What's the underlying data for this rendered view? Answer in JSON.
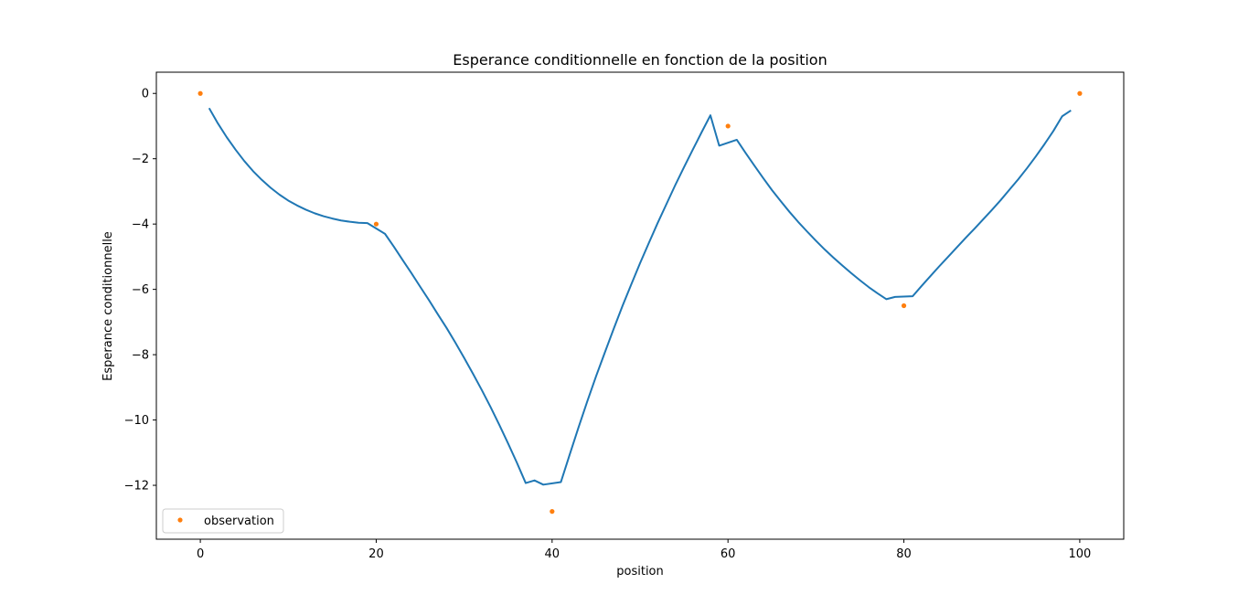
{
  "chart_data": {
    "type": "line",
    "title": "Esperance conditionnelle en fonction de la position",
    "xlabel": "position",
    "ylabel": "Esperance conditionnelle",
    "xlim": [
      -5,
      105
    ],
    "ylim": [
      -13.65,
      0.65
    ],
    "xticks": [
      0,
      20,
      40,
      60,
      80,
      100
    ],
    "yticks": [
      0,
      -2,
      -4,
      -6,
      -8,
      -10,
      -12
    ],
    "xtick_labels": [
      "0",
      "20",
      "40",
      "60",
      "80",
      "100"
    ],
    "ytick_labels": [
      "0",
      "−2",
      "−4",
      "−6",
      "−8",
      "−10",
      "−12"
    ],
    "grid": false,
    "legend": {
      "placement": "lower-left",
      "entries": [
        "observation"
      ]
    },
    "series": [
      {
        "kind": "line",
        "color": "#1f77b4",
        "x": [
          1,
          2,
          3,
          4,
          5,
          6,
          7,
          8,
          9,
          10,
          11,
          12,
          13,
          14,
          15,
          16,
          17,
          18,
          19,
          21,
          22,
          23,
          24,
          25,
          26,
          27,
          28,
          29,
          30,
          31,
          32,
          33,
          34,
          35,
          36,
          37,
          38,
          39,
          41,
          42,
          43,
          44,
          45,
          46,
          47,
          48,
          49,
          50,
          51,
          52,
          53,
          54,
          55,
          56,
          57,
          58,
          59,
          61,
          62,
          63,
          64,
          65,
          66,
          67,
          68,
          69,
          70,
          71,
          72,
          73,
          74,
          75,
          76,
          77,
          78,
          79,
          81,
          82,
          83,
          84,
          85,
          86,
          87,
          88,
          89,
          90,
          91,
          92,
          93,
          94,
          95,
          96,
          97,
          98,
          99
        ],
        "y": [
          -0.45,
          -0.92,
          -1.34,
          -1.72,
          -2.07,
          -2.38,
          -2.65,
          -2.89,
          -3.1,
          -3.28,
          -3.43,
          -3.56,
          -3.67,
          -3.76,
          -3.83,
          -3.89,
          -3.93,
          -3.96,
          -3.97,
          -4.3,
          -4.69,
          -5.1,
          -5.5,
          -5.92,
          -6.33,
          -6.76,
          -7.18,
          -7.63,
          -8.1,
          -8.58,
          -9.08,
          -9.6,
          -10.15,
          -10.72,
          -11.31,
          -11.93,
          -11.85,
          -11.98,
          -11.9,
          -11.06,
          -10.23,
          -9.43,
          -8.66,
          -7.93,
          -7.21,
          -6.51,
          -5.85,
          -5.2,
          -4.58,
          -3.97,
          -3.39,
          -2.81,
          -2.26,
          -1.72,
          -1.19,
          -0.67,
          -1.6,
          -1.42,
          -1.82,
          -2.21,
          -2.59,
          -2.96,
          -3.3,
          -3.63,
          -3.94,
          -4.23,
          -4.51,
          -4.78,
          -5.03,
          -5.27,
          -5.5,
          -5.72,
          -5.93,
          -6.12,
          -6.3,
          -6.23,
          -6.21,
          -5.9,
          -5.6,
          -5.3,
          -5.01,
          -4.72,
          -4.43,
          -4.15,
          -3.86,
          -3.57,
          -3.27,
          -2.95,
          -2.63,
          -2.29,
          -1.93,
          -1.55,
          -1.15,
          -0.7,
          -0.52
        ]
      },
      {
        "kind": "points",
        "name": "observation",
        "color": "#ff7f0e",
        "x": [
          0,
          20,
          40,
          60,
          80,
          100
        ],
        "y": [
          0,
          -4,
          -12.8,
          -1,
          -6.5,
          0
        ]
      }
    ]
  }
}
